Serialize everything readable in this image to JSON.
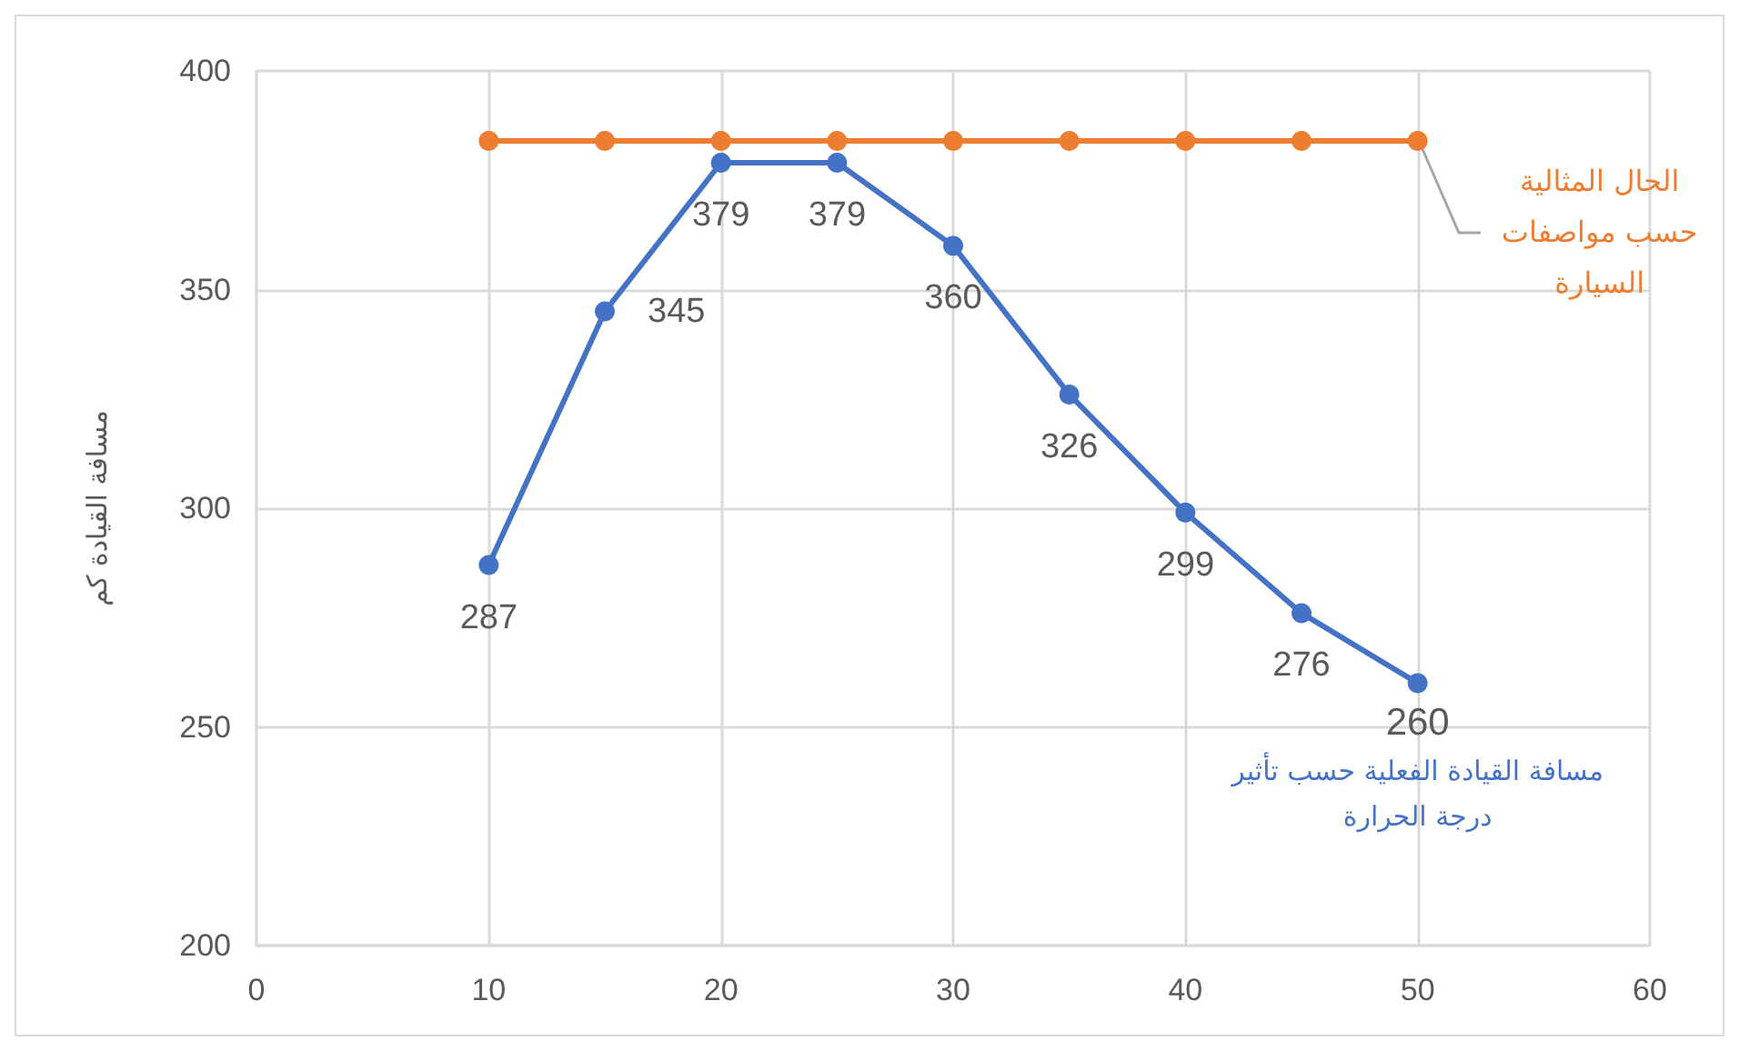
{
  "chart_data": {
    "type": "line",
    "ylabel": "مسافة القيادة كم",
    "x": [
      10,
      15,
      20,
      25,
      30,
      35,
      40,
      45,
      50
    ],
    "xlim": [
      0,
      60
    ],
    "xticks": [
      0,
      10,
      20,
      30,
      40,
      50,
      60
    ],
    "ylim": [
      200,
      400
    ],
    "yticks": [
      200,
      250,
      300,
      350,
      400
    ],
    "grid": true,
    "marker": "circle",
    "line_style": "solid",
    "series": [
      {
        "name": "مسافة القيادة الفعلية حسب تأثير درجة الحرارة",
        "color": "#4472c4",
        "values": [
          287,
          345,
          379,
          379,
          360,
          326,
          299,
          276,
          260
        ],
        "value_labels": [
          "287",
          "345",
          "379",
          "379",
          "360",
          "326",
          "299",
          "276",
          "260"
        ]
      },
      {
        "name": "الحال المثالية حسب مواصفات السيارة",
        "color": "#ed7d31",
        "values": [
          384,
          384,
          384,
          384,
          384,
          384,
          384,
          384,
          384
        ]
      }
    ]
  }
}
